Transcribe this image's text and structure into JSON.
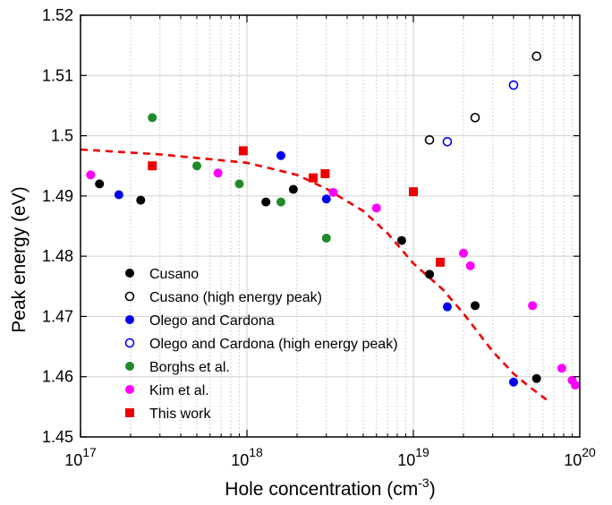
{
  "chart_data": {
    "type": "scatter",
    "title": "",
    "xlabel": {
      "main": "Hole concentration (cm",
      "sup": "-3",
      "tail": ")"
    },
    "ylabel": "Peak energy (eV)",
    "xscale": "log",
    "xlim": [
      1e+17,
      1e+20
    ],
    "ylim": [
      1.45,
      1.52
    ],
    "x_major_ticks": [
      {
        "value": 1e+17,
        "base": "10",
        "exp": "17"
      },
      {
        "value": 1e+18,
        "base": "10",
        "exp": "18"
      },
      {
        "value": 1e+19,
        "base": "10",
        "exp": "19"
      },
      {
        "value": 1e+20,
        "base": "10",
        "exp": "20"
      }
    ],
    "y_ticks": [
      {
        "value": 1.45,
        "label": "1.45"
      },
      {
        "value": 1.46,
        "label": "1.46"
      },
      {
        "value": 1.47,
        "label": "1.47"
      },
      {
        "value": 1.48,
        "label": "1.48"
      },
      {
        "value": 1.49,
        "label": "1.49"
      },
      {
        "value": 1.5,
        "label": "1.5"
      },
      {
        "value": 1.51,
        "label": "1.51"
      },
      {
        "value": 1.52,
        "label": "1.52"
      }
    ],
    "grid": true,
    "legend_position": "bottom-left",
    "series": [
      {
        "name": "Cusano",
        "marker": "filled-circle",
        "color": "#000000",
        "points": [
          [
            1.3e+17,
            1.492
          ],
          [
            2.3e+17,
            1.4893
          ],
          [
            1.3e+18,
            1.489
          ],
          [
            1.9e+18,
            1.4911
          ],
          [
            8.5e+18,
            1.4826
          ],
          [
            1.25e+19,
            1.477
          ],
          [
            2.35e+19,
            1.4718
          ],
          [
            5.5e+19,
            1.4597
          ]
        ]
      },
      {
        "name": "Cusano (high energy peak)",
        "marker": "open-circle",
        "color": "#000000",
        "points": [
          [
            1.25e+19,
            1.4993
          ],
          [
            2.35e+19,
            1.503
          ],
          [
            5.5e+19,
            1.5132
          ]
        ]
      },
      {
        "name": "Olego and Cardona",
        "marker": "filled-circle",
        "color": "#0000ee",
        "points": [
          [
            1.7e+17,
            1.4902
          ],
          [
            1.6e+18,
            1.4967
          ],
          [
            3e+18,
            1.4895
          ],
          [
            1.6e+19,
            1.4716
          ],
          [
            4e+19,
            1.4591
          ]
        ]
      },
      {
        "name": "Olego and Cardona (high energy peak)",
        "marker": "open-circle",
        "color": "#0000ee",
        "points": [
          [
            1.6e+19,
            1.499
          ],
          [
            4e+19,
            1.5084
          ]
        ]
      },
      {
        "name": "Borghs et al.",
        "marker": "filled-circle",
        "color": "#1f8a2a",
        "points": [
          [
            2.7e+17,
            1.503
          ],
          [
            5e+17,
            1.495
          ],
          [
            9e+17,
            1.492
          ],
          [
            1.6e+18,
            1.489
          ],
          [
            3e+18,
            1.483
          ]
        ]
      },
      {
        "name": "Kim et al.",
        "marker": "filled-circle",
        "color": "#ff00ff",
        "points": [
          [
            1.15e+17,
            1.4935
          ],
          [
            6.7e+17,
            1.4938
          ],
          [
            3.3e+18,
            1.4906
          ],
          [
            6e+18,
            1.488
          ],
          [
            2e+19,
            1.4805
          ],
          [
            2.2e+19,
            1.4784
          ],
          [
            5.2e+19,
            1.4718
          ],
          [
            7.8e+19,
            1.4614
          ],
          [
            9e+19,
            1.4594
          ],
          [
            9.4e+19,
            1.4586
          ]
        ]
      },
      {
        "name": "This work",
        "marker": "filled-square",
        "color": "#ee0000",
        "points": [
          [
            2.7e+17,
            1.495
          ],
          [
            9.5e+17,
            1.4975
          ],
          [
            2.5e+18,
            1.493
          ],
          [
            2.95e+18,
            1.4937
          ],
          [
            1e+19,
            1.4907
          ],
          [
            1.45e+19,
            1.479
          ]
        ]
      }
    ],
    "fit_curve": {
      "style": "dashed",
      "color": "#ee0000",
      "points": [
        [
          1e+17,
          1.4977
        ],
        [
          3e+17,
          1.4969
        ],
        [
          1e+18,
          1.4955
        ],
        [
          2e+18,
          1.4935
        ],
        [
          3e+18,
          1.4912
        ],
        [
          5e+18,
          1.4875
        ],
        [
          7e+18,
          1.4838
        ],
        [
          1e+19,
          1.4788
        ],
        [
          1.5e+19,
          1.4745
        ],
        [
          2e+19,
          1.4705
        ],
        [
          3e+19,
          1.4642
        ],
        [
          4e+19,
          1.4605
        ],
        [
          5e+19,
          1.4583
        ],
        [
          6.3e+19,
          1.4562
        ]
      ]
    }
  }
}
